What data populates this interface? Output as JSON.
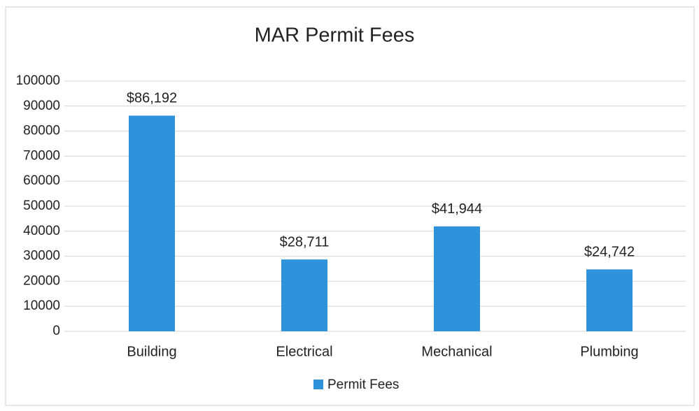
{
  "chart_data": {
    "type": "bar",
    "title": "MAR Permit Fees",
    "categories": [
      "Building",
      "Electrical",
      "Mechanical",
      "Plumbing"
    ],
    "series": [
      {
        "name": "Permit Fees",
        "color": "#2f93dc",
        "values": [
          86192,
          28711,
          41944,
          24742
        ],
        "value_labels": [
          "$86,192",
          "$28,711",
          "$41,944",
          "$24,742"
        ]
      }
    ],
    "ylim": [
      0,
      100000
    ],
    "yticks": [
      0,
      10000,
      20000,
      30000,
      40000,
      50000,
      60000,
      70000,
      80000,
      90000,
      100000
    ],
    "grid": true,
    "legend": "bottom"
  }
}
